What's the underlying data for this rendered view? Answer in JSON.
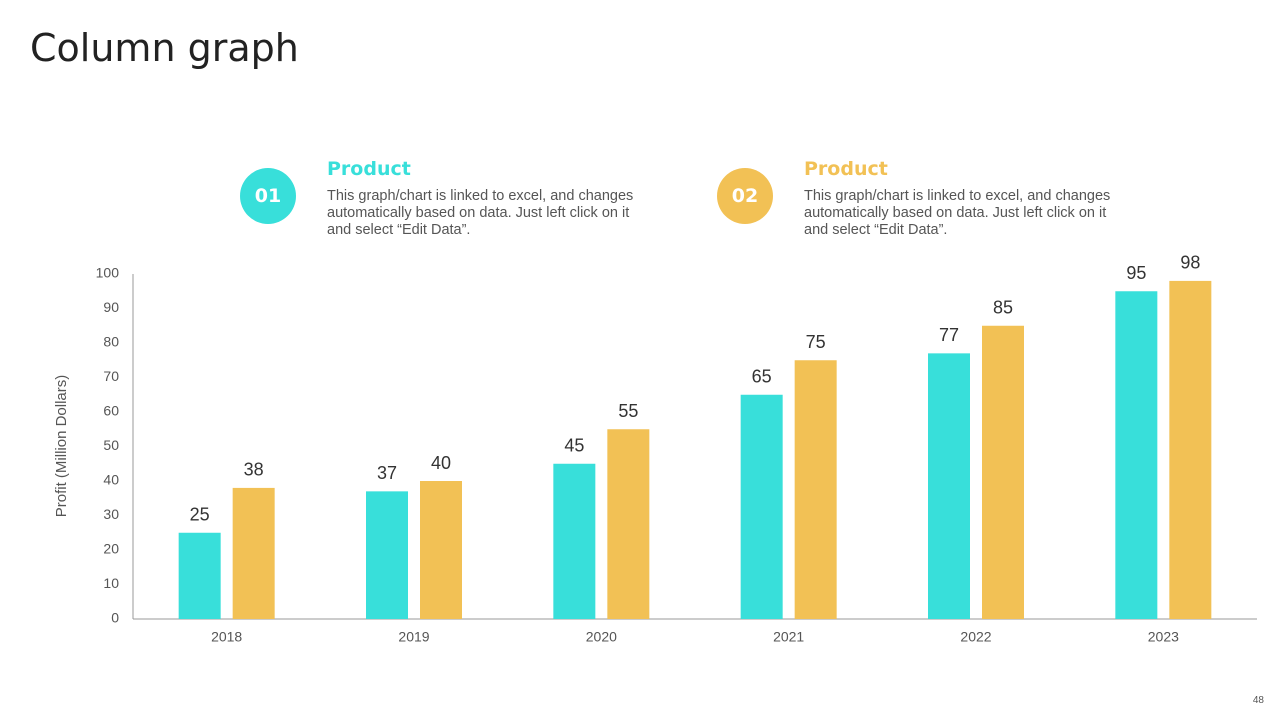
{
  "chart_data": {
    "type": "bar",
    "title": "Column graph",
    "ylabel": "Profit  (Million Dollars)",
    "categories": [
      "2018",
      "2019",
      "2020",
      "2021",
      "2022",
      "2023"
    ],
    "series": [
      {
        "name": "Product",
        "badge": "01",
        "color": "#38dfda",
        "description": "This graph/chart is linked to excel, and changes automatically based on data. Just left click on it and select “Edit Data”.",
        "values": [
          25,
          37,
          45,
          65,
          77,
          95
        ]
      },
      {
        "name": "Product",
        "badge": "02",
        "color": "#f2c155",
        "description": "This graph/chart is linked to excel, and changes automatically based on data. Just left click on it and select “Edit Data”.",
        "values": [
          38,
          40,
          55,
          75,
          85,
          98
        ]
      }
    ],
    "ylim": [
      0,
      100
    ],
    "yticks": [
      0,
      10,
      20,
      30,
      40,
      50,
      60,
      70,
      80,
      90,
      100
    ],
    "grid": false
  },
  "page_number": 48
}
